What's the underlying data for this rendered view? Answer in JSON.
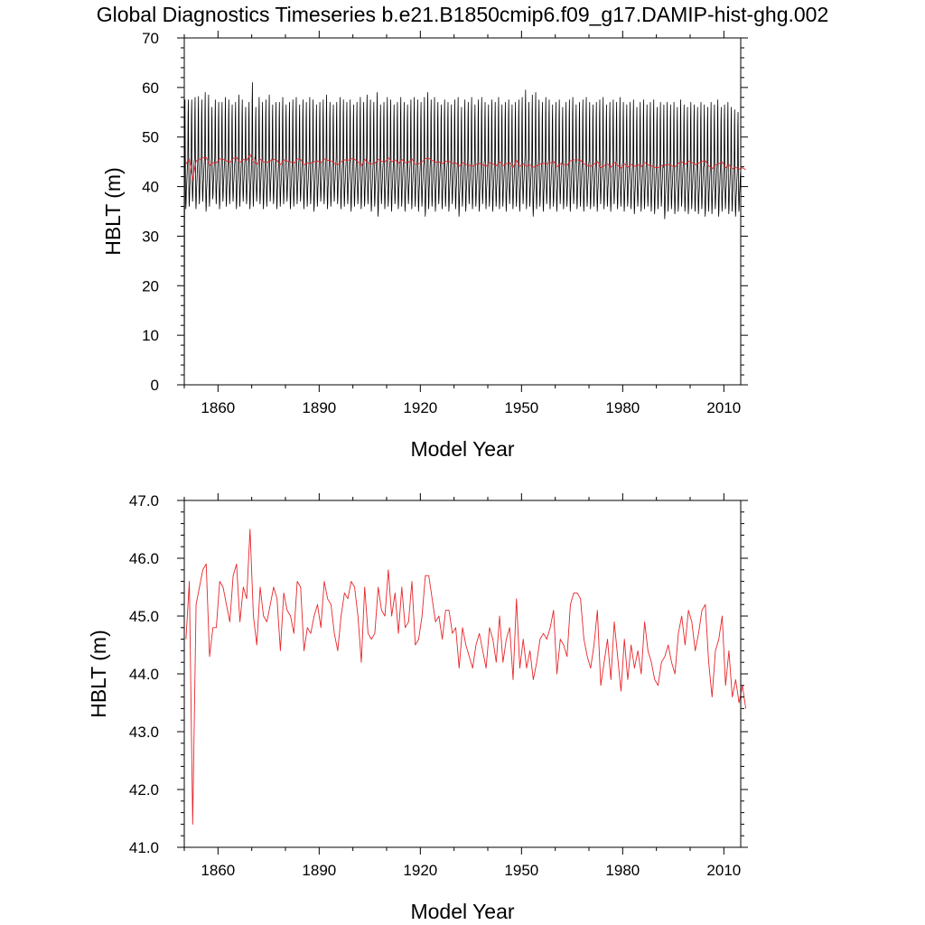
{
  "page": {
    "title": "Global Diagnostics Timeseries b.e21.B1850cmip6.f09_g17.DAMIP-hist-ghg.002"
  },
  "chart_data": [
    {
      "type": "line",
      "title": "",
      "xlabel": "Model Year",
      "ylabel": "HBLT (m)",
      "xlim": [
        1850,
        2015
      ],
      "ylim": [
        0,
        70
      ],
      "x_ticks": [
        1860,
        1890,
        1920,
        1950,
        1980,
        2010
      ],
      "y_ticks": [
        0,
        10,
        20,
        30,
        40,
        50,
        60,
        70
      ],
      "y_decimals": 0,
      "grid": false,
      "legend": "none",
      "series": [
        {
          "color": "#000000",
          "resolution": "monthly",
          "start_value": 3,
          "annual_max": [
            57.5,
            57.5,
            57.5,
            58.0,
            58.2,
            57.5,
            59.0,
            58.5,
            56.0,
            57.5,
            57.0,
            57.0,
            58.0,
            57.5,
            56.5,
            57.0,
            58.5,
            57.5,
            56.0,
            57.0,
            61.0,
            56.0,
            58.0,
            57.0,
            57.5,
            58.5,
            56.5,
            57.0,
            57.0,
            58.0,
            56.5,
            57.0,
            57.5,
            58.0,
            56.5,
            57.5,
            57.0,
            58.0,
            57.5,
            56.5,
            57.0,
            57.5,
            58.5,
            57.0,
            56.5,
            57.0,
            58.0,
            57.5,
            57.0,
            57.5,
            56.5,
            57.0,
            58.0,
            57.0,
            58.5,
            57.5,
            57.0,
            59.0,
            56.5,
            57.0,
            58.0,
            57.5,
            56.5,
            57.0,
            58.0,
            57.0,
            56.5,
            57.5,
            58.0,
            57.5,
            57.0,
            58.0,
            59.0,
            57.5,
            58.0,
            57.0,
            56.5,
            57.5,
            57.0,
            56.5,
            57.5,
            58.0,
            56.0,
            57.5,
            57.0,
            58.0,
            56.5,
            57.5,
            58.0,
            57.0,
            56.5,
            57.5,
            57.0,
            58.0,
            56.5,
            57.0,
            57.5,
            56.5,
            57.0,
            57.5,
            58.0,
            59.5,
            57.0,
            58.5,
            59.0,
            57.5,
            57.0,
            58.0,
            57.5,
            56.5,
            57.0,
            57.5,
            56.0,
            57.0,
            57.5,
            58.0,
            56.5,
            57.0,
            57.5,
            58.0,
            57.0,
            56.5,
            57.0,
            57.5,
            58.0,
            56.5,
            57.0,
            57.5,
            57.0,
            58.0,
            57.0,
            56.5,
            57.0,
            57.5,
            56.0,
            57.0,
            57.5,
            56.5,
            57.0,
            57.5,
            56.0,
            57.0,
            56.5,
            57.0,
            56.5,
            57.0,
            56.0,
            57.5,
            56.5,
            56.0,
            57.0,
            56.5,
            56.0,
            57.0,
            56.5,
            56.0,
            57.0,
            56.5,
            57.5,
            56.0,
            56.5,
            57.0,
            56.0,
            55.5,
            55.0
          ],
          "annual_min": [
            35.5,
            36.0,
            37.0,
            35.5,
            36.5,
            37.0,
            35.0,
            36.0,
            37.5,
            36.5,
            35.5,
            37.0,
            36.0,
            36.5,
            37.0,
            35.5,
            36.0,
            37.0,
            36.5,
            35.5,
            36.0,
            37.0,
            36.5,
            35.5,
            36.0,
            37.0,
            36.5,
            35.5,
            36.0,
            36.5,
            37.0,
            35.5,
            36.0,
            36.5,
            37.0,
            35.5,
            36.0,
            36.5,
            35.0,
            36.0,
            37.0,
            36.5,
            35.5,
            36.0,
            37.0,
            36.5,
            35.5,
            36.0,
            36.5,
            35.0,
            36.0,
            36.5,
            35.5,
            36.0,
            36.5,
            35.0,
            36.0,
            34.0,
            36.5,
            35.5,
            36.0,
            35.0,
            36.5,
            35.5,
            36.0,
            35.0,
            36.5,
            35.5,
            36.0,
            35.0,
            36.0,
            34.0,
            35.5,
            36.0,
            35.0,
            36.5,
            35.5,
            36.0,
            35.0,
            36.5,
            35.5,
            34.0,
            36.0,
            35.0,
            36.5,
            35.5,
            36.0,
            35.0,
            36.5,
            35.5,
            36.0,
            35.0,
            36.0,
            35.5,
            36.0,
            35.0,
            36.5,
            35.5,
            36.0,
            35.0,
            36.5,
            35.5,
            36.0,
            34.0,
            35.5,
            36.0,
            35.0,
            36.5,
            35.5,
            36.0,
            35.0,
            36.5,
            35.5,
            36.0,
            35.0,
            36.5,
            35.5,
            36.0,
            35.0,
            36.0,
            35.5,
            36.0,
            35.0,
            36.5,
            35.5,
            36.0,
            35.0,
            36.5,
            35.5,
            36.0,
            35.0,
            36.0,
            35.5,
            34.5,
            36.0,
            35.0,
            35.5,
            36.0,
            35.0,
            34.5,
            35.5,
            36.0,
            33.5,
            35.0,
            35.5,
            34.5,
            35.0,
            36.0,
            35.0,
            34.5,
            35.5,
            35.0,
            34.5,
            35.5,
            34.0,
            35.0,
            34.5,
            35.5,
            34.0,
            35.0,
            35.5,
            34.5,
            35.0,
            34.0,
            35.0
          ]
        },
        {
          "color": "#e8262b",
          "resolution": "annual",
          "x_start": 1850.5,
          "values": [
            44.6,
            45.6,
            41.4,
            45.2,
            45.5,
            45.8,
            45.9,
            44.3,
            44.8,
            44.8,
            45.6,
            45.5,
            45.2,
            44.9,
            45.7,
            45.9,
            44.9,
            45.5,
            45.3,
            46.5,
            45.0,
            44.5,
            45.5,
            45.0,
            44.9,
            45.2,
            45.5,
            45.3,
            44.4,
            45.4,
            45.1,
            45.0,
            44.7,
            45.6,
            45.5,
            44.4,
            44.8,
            44.7,
            45.0,
            45.2,
            44.8,
            45.6,
            45.3,
            45.2,
            44.7,
            44.4,
            45.0,
            45.4,
            45.3,
            45.6,
            45.5,
            45.0,
            44.2,
            45.5,
            44.7,
            44.6,
            44.7,
            45.5,
            45.1,
            45.0,
            45.8,
            45.0,
            45.4,
            44.7,
            45.5,
            44.8,
            44.9,
            45.6,
            44.5,
            44.6,
            45.0,
            45.7,
            45.7,
            45.3,
            44.9,
            45.0,
            44.6,
            45.1,
            45.1,
            44.7,
            44.8,
            44.1,
            44.8,
            44.5,
            44.3,
            44.1,
            44.5,
            44.7,
            44.4,
            44.1,
            44.8,
            44.6,
            44.2,
            45.0,
            44.2,
            44.6,
            44.8,
            43.9,
            45.3,
            44.1,
            44.6,
            44.1,
            44.4,
            43.9,
            44.2,
            44.6,
            44.7,
            44.6,
            44.8,
            45.1,
            44.0,
            44.6,
            44.5,
            44.3,
            45.2,
            45.4,
            45.4,
            45.3,
            44.6,
            44.3,
            44.1,
            44.5,
            45.1,
            43.8,
            44.2,
            44.6,
            43.9,
            44.9,
            44.3,
            43.7,
            44.6,
            43.9,
            44.5,
            44.1,
            44.4,
            44.0,
            44.9,
            44.4,
            44.2,
            43.9,
            43.8,
            44.2,
            44.3,
            44.5,
            44.2,
            44.0,
            44.7,
            45.0,
            44.5,
            45.1,
            44.9,
            44.4,
            44.7,
            45.1,
            45.2,
            44.2,
            43.6,
            44.4,
            44.6,
            45.0,
            43.8,
            44.4,
            43.6,
            43.9,
            43.5,
            43.8,
            43.4
          ]
        }
      ]
    },
    {
      "type": "line",
      "title": "",
      "xlabel": "Model Year",
      "ylabel": "HBLT (m)",
      "xlim": [
        1850,
        2015
      ],
      "ylim": [
        41,
        47
      ],
      "x_ticks": [
        1860,
        1890,
        1920,
        1950,
        1980,
        2010
      ],
      "y_ticks": [
        41.0,
        42.0,
        43.0,
        44.0,
        45.0,
        46.0,
        47.0
      ],
      "y_decimals": 1,
      "grid": false,
      "legend": "none",
      "series": [
        {
          "color": "#e8262b",
          "resolution": "annual",
          "x_start": 1850.5,
          "values": [
            44.6,
            45.6,
            41.4,
            45.2,
            45.5,
            45.8,
            45.9,
            44.3,
            44.8,
            44.8,
            45.6,
            45.5,
            45.2,
            44.9,
            45.7,
            45.9,
            44.9,
            45.5,
            45.3,
            46.5,
            45.0,
            44.5,
            45.5,
            45.0,
            44.9,
            45.2,
            45.5,
            45.3,
            44.4,
            45.4,
            45.1,
            45.0,
            44.7,
            45.6,
            45.5,
            44.4,
            44.8,
            44.7,
            45.0,
            45.2,
            44.8,
            45.6,
            45.3,
            45.2,
            44.7,
            44.4,
            45.0,
            45.4,
            45.3,
            45.6,
            45.5,
            45.0,
            44.2,
            45.5,
            44.7,
            44.6,
            44.7,
            45.5,
            45.1,
            45.0,
            45.8,
            45.0,
            45.4,
            44.7,
            45.5,
            44.8,
            44.9,
            45.6,
            44.5,
            44.6,
            45.0,
            45.7,
            45.7,
            45.3,
            44.9,
            45.0,
            44.6,
            45.1,
            45.1,
            44.7,
            44.8,
            44.1,
            44.8,
            44.5,
            44.3,
            44.1,
            44.5,
            44.7,
            44.4,
            44.1,
            44.8,
            44.6,
            44.2,
            45.0,
            44.2,
            44.6,
            44.8,
            43.9,
            45.3,
            44.1,
            44.6,
            44.1,
            44.4,
            43.9,
            44.2,
            44.6,
            44.7,
            44.6,
            44.8,
            45.1,
            44.0,
            44.6,
            44.5,
            44.3,
            45.2,
            45.4,
            45.4,
            45.3,
            44.6,
            44.3,
            44.1,
            44.5,
            45.1,
            43.8,
            44.2,
            44.6,
            43.9,
            44.9,
            44.3,
            43.7,
            44.6,
            43.9,
            44.5,
            44.1,
            44.4,
            44.0,
            44.9,
            44.4,
            44.2,
            43.9,
            43.8,
            44.2,
            44.3,
            44.5,
            44.2,
            44.0,
            44.7,
            45.0,
            44.5,
            45.1,
            44.9,
            44.4,
            44.7,
            45.1,
            45.2,
            44.2,
            43.6,
            44.4,
            44.6,
            45.0,
            43.8,
            44.4,
            43.6,
            43.9,
            43.5,
            43.8,
            43.4
          ]
        }
      ]
    }
  ]
}
